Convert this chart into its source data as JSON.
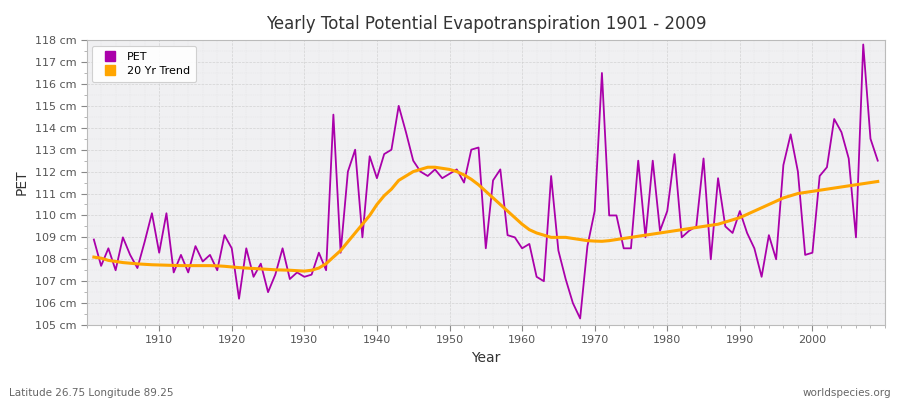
{
  "title": "Yearly Total Potential Evapotranspiration 1901 - 2009",
  "xlabel": "Year",
  "ylabel": "PET",
  "subtitle": "Latitude 26.75 Longitude 89.25",
  "watermark": "worldspecies.org",
  "pet_color": "#AA00AA",
  "trend_color": "#FFA500",
  "bg_color": "#FFFFFF",
  "plot_bg_color": "#F0F0F2",
  "ylim": [
    105,
    118
  ],
  "yticks": [
    105,
    106,
    107,
    108,
    109,
    110,
    111,
    112,
    113,
    114,
    115,
    116,
    117,
    118
  ],
  "years": [
    1901,
    1902,
    1903,
    1904,
    1905,
    1906,
    1907,
    1908,
    1909,
    1910,
    1911,
    1912,
    1913,
    1914,
    1915,
    1916,
    1917,
    1918,
    1919,
    1920,
    1921,
    1922,
    1923,
    1924,
    1925,
    1926,
    1927,
    1928,
    1929,
    1930,
    1931,
    1932,
    1933,
    1934,
    1935,
    1936,
    1937,
    1938,
    1939,
    1940,
    1941,
    1942,
    1943,
    1944,
    1945,
    1946,
    1947,
    1948,
    1949,
    1950,
    1951,
    1952,
    1953,
    1954,
    1955,
    1956,
    1957,
    1958,
    1959,
    1960,
    1961,
    1962,
    1963,
    1964,
    1965,
    1966,
    1967,
    1968,
    1969,
    1970,
    1971,
    1972,
    1973,
    1974,
    1975,
    1976,
    1977,
    1978,
    1979,
    1980,
    1981,
    1982,
    1983,
    1984,
    1985,
    1986,
    1987,
    1988,
    1989,
    1990,
    1991,
    1992,
    1993,
    1994,
    1995,
    1996,
    1997,
    1998,
    1999,
    2000,
    2001,
    2002,
    2003,
    2004,
    2005,
    2006,
    2007,
    2008,
    2009
  ],
  "pet_values": [
    108.9,
    107.7,
    108.5,
    107.5,
    109.0,
    108.2,
    107.6,
    108.8,
    110.1,
    108.3,
    110.1,
    107.4,
    108.2,
    107.4,
    108.6,
    107.9,
    108.2,
    107.5,
    109.1,
    108.5,
    106.2,
    108.5,
    107.2,
    107.8,
    106.5,
    107.3,
    108.5,
    107.1,
    107.4,
    107.2,
    107.3,
    108.3,
    107.5,
    114.6,
    108.3,
    112.0,
    113.0,
    109.0,
    112.7,
    111.7,
    112.8,
    113.0,
    115.0,
    113.8,
    112.5,
    112.0,
    111.8,
    112.1,
    111.7,
    111.9,
    112.1,
    111.5,
    113.0,
    113.1,
    108.5,
    111.6,
    112.1,
    109.1,
    109.0,
    108.5,
    108.7,
    107.2,
    107.0,
    111.8,
    108.4,
    107.1,
    106.0,
    105.3,
    108.6,
    110.2,
    116.5,
    110.0,
    110.0,
    108.5,
    108.5,
    112.5,
    109.0,
    112.5,
    109.3,
    110.2,
    112.8,
    109.0,
    109.3,
    109.5,
    112.6,
    108.0,
    111.7,
    109.5,
    109.2,
    110.2,
    109.2,
    108.5,
    107.2,
    109.1,
    108.0,
    112.3,
    113.7,
    112.0,
    108.2,
    108.3,
    111.8,
    112.2,
    114.4,
    113.8,
    112.6,
    109.0,
    117.8,
    113.5,
    112.5
  ],
  "trend_values": [
    108.1,
    108.05,
    107.95,
    107.9,
    107.85,
    107.82,
    107.79,
    107.77,
    107.75,
    107.74,
    107.73,
    107.72,
    107.71,
    107.71,
    107.71,
    107.71,
    107.71,
    107.7,
    107.68,
    107.65,
    107.62,
    107.6,
    107.58,
    107.56,
    107.54,
    107.52,
    107.51,
    107.5,
    107.48,
    107.46,
    107.5,
    107.6,
    107.8,
    108.1,
    108.4,
    108.8,
    109.2,
    109.6,
    110.0,
    110.5,
    110.9,
    111.2,
    111.6,
    111.8,
    112.0,
    112.1,
    112.2,
    112.2,
    112.15,
    112.1,
    112.0,
    111.85,
    111.65,
    111.4,
    111.1,
    110.8,
    110.5,
    110.2,
    109.9,
    109.6,
    109.35,
    109.2,
    109.1,
    109.0,
    109.0,
    109.0,
    108.95,
    108.9,
    108.85,
    108.83,
    108.82,
    108.85,
    108.9,
    108.95,
    109.0,
    109.05,
    109.1,
    109.15,
    109.2,
    109.25,
    109.3,
    109.35,
    109.4,
    109.45,
    109.5,
    109.55,
    109.6,
    109.7,
    109.8,
    109.9,
    110.05,
    110.2,
    110.35,
    110.5,
    110.65,
    110.8,
    110.9,
    111.0,
    111.05,
    111.1,
    111.15,
    111.2,
    111.25,
    111.3,
    111.35,
    111.4,
    111.45,
    111.5,
    111.55
  ]
}
